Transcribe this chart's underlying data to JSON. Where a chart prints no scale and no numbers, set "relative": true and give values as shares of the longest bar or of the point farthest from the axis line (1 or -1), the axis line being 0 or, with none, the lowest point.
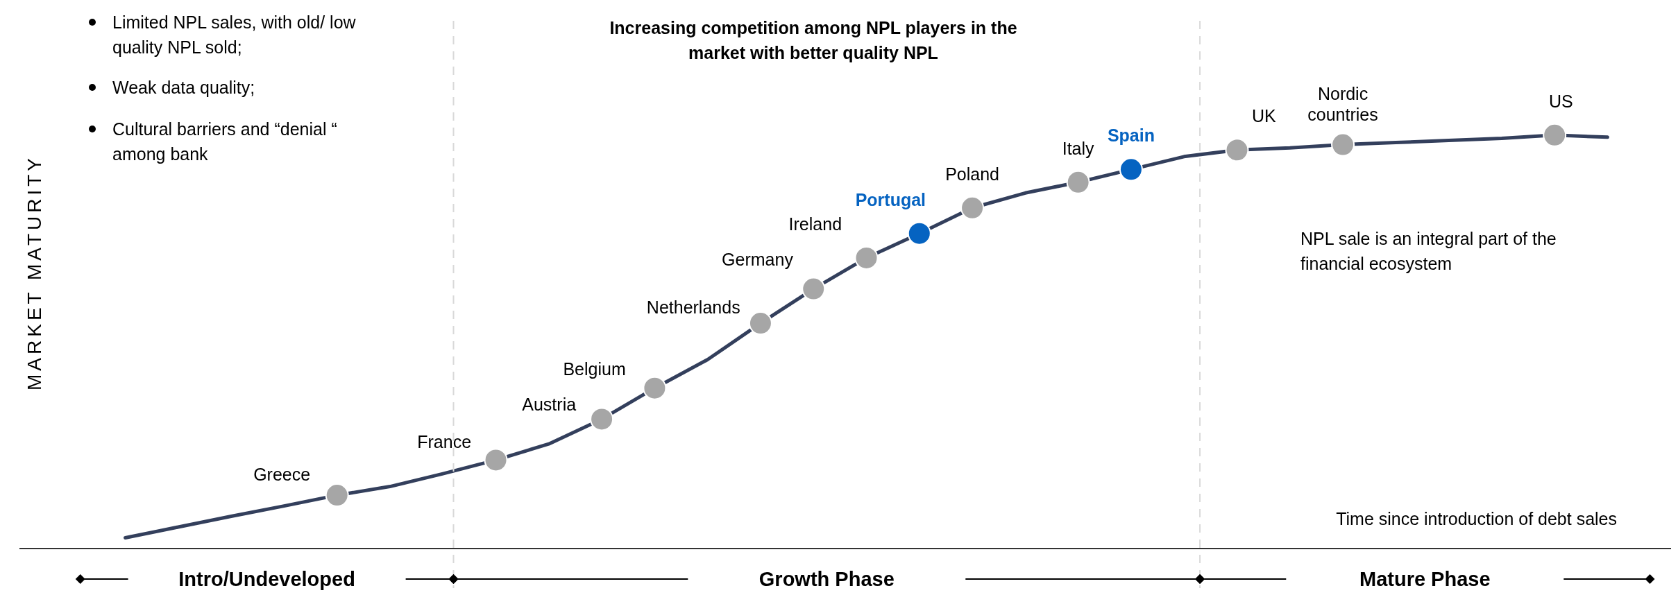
{
  "chart_data": {
    "type": "line",
    "relative": true,
    "categories": [
      null,
      null,
      null,
      null,
      null,
      null,
      null,
      null,
      null,
      null,
      null,
      null,
      null,
      null,
      null,
      null,
      null,
      null,
      null,
      null,
      null,
      null,
      null,
      null,
      null,
      null,
      null,
      null,
      null
    ],
    "series": [
      {
        "color": "#333f5c",
        "values": [
          0.026,
          0.052,
          0.078,
          0.103,
          0.129,
          0.15,
          0.181,
          0.214,
          0.253,
          0.313,
          0.388,
          0.457,
          0.545,
          0.628,
          0.703,
          0.762,
          0.824,
          0.86,
          0.886,
          0.917,
          0.948,
          0.964,
          0.969,
          0.977,
          0.982,
          0.987,
          0.992,
          1.0,
          0.995
        ],
        "colors": [
          null,
          null,
          null,
          null,
          "#a6a6a6",
          null,
          null,
          "#a6a6a6",
          null,
          "#a6a6a6",
          "#a6a6a6",
          null,
          "#a6a6a6",
          "#a6a6a6",
          "#a6a6a6",
          "#0563c1",
          "#a6a6a6",
          null,
          "#a6a6a6",
          "#0563c1",
          null,
          "#a6a6a6",
          null,
          "#a6a6a6",
          null,
          null,
          null,
          "#a6a6a6",
          null
        ]
      }
    ],
    "xlabel": "Time since introduction of debt sales",
    "ylabel": "MARKET MATURITY",
    "annotations": [
      "Limited NPL sales, with old/ low quality NPL sold;",
      "Weak data quality;",
      "Cultural barriers and “denial “ among bank",
      "Increasing competition among NPL players in the market with better quality NPL",
      "NPL sale is an integral part of the financial ecosystem",
      "Intro/Undeveloped",
      "Growth Phase",
      "Mature Phase",
      "Greece",
      "France",
      "Austria",
      "Belgium",
      "Netherlands",
      "Germany",
      "Ireland",
      "Portugal",
      "Poland",
      "Italy",
      "Spain",
      "UK",
      "Nordic countries",
      "US"
    ]
  }
}
